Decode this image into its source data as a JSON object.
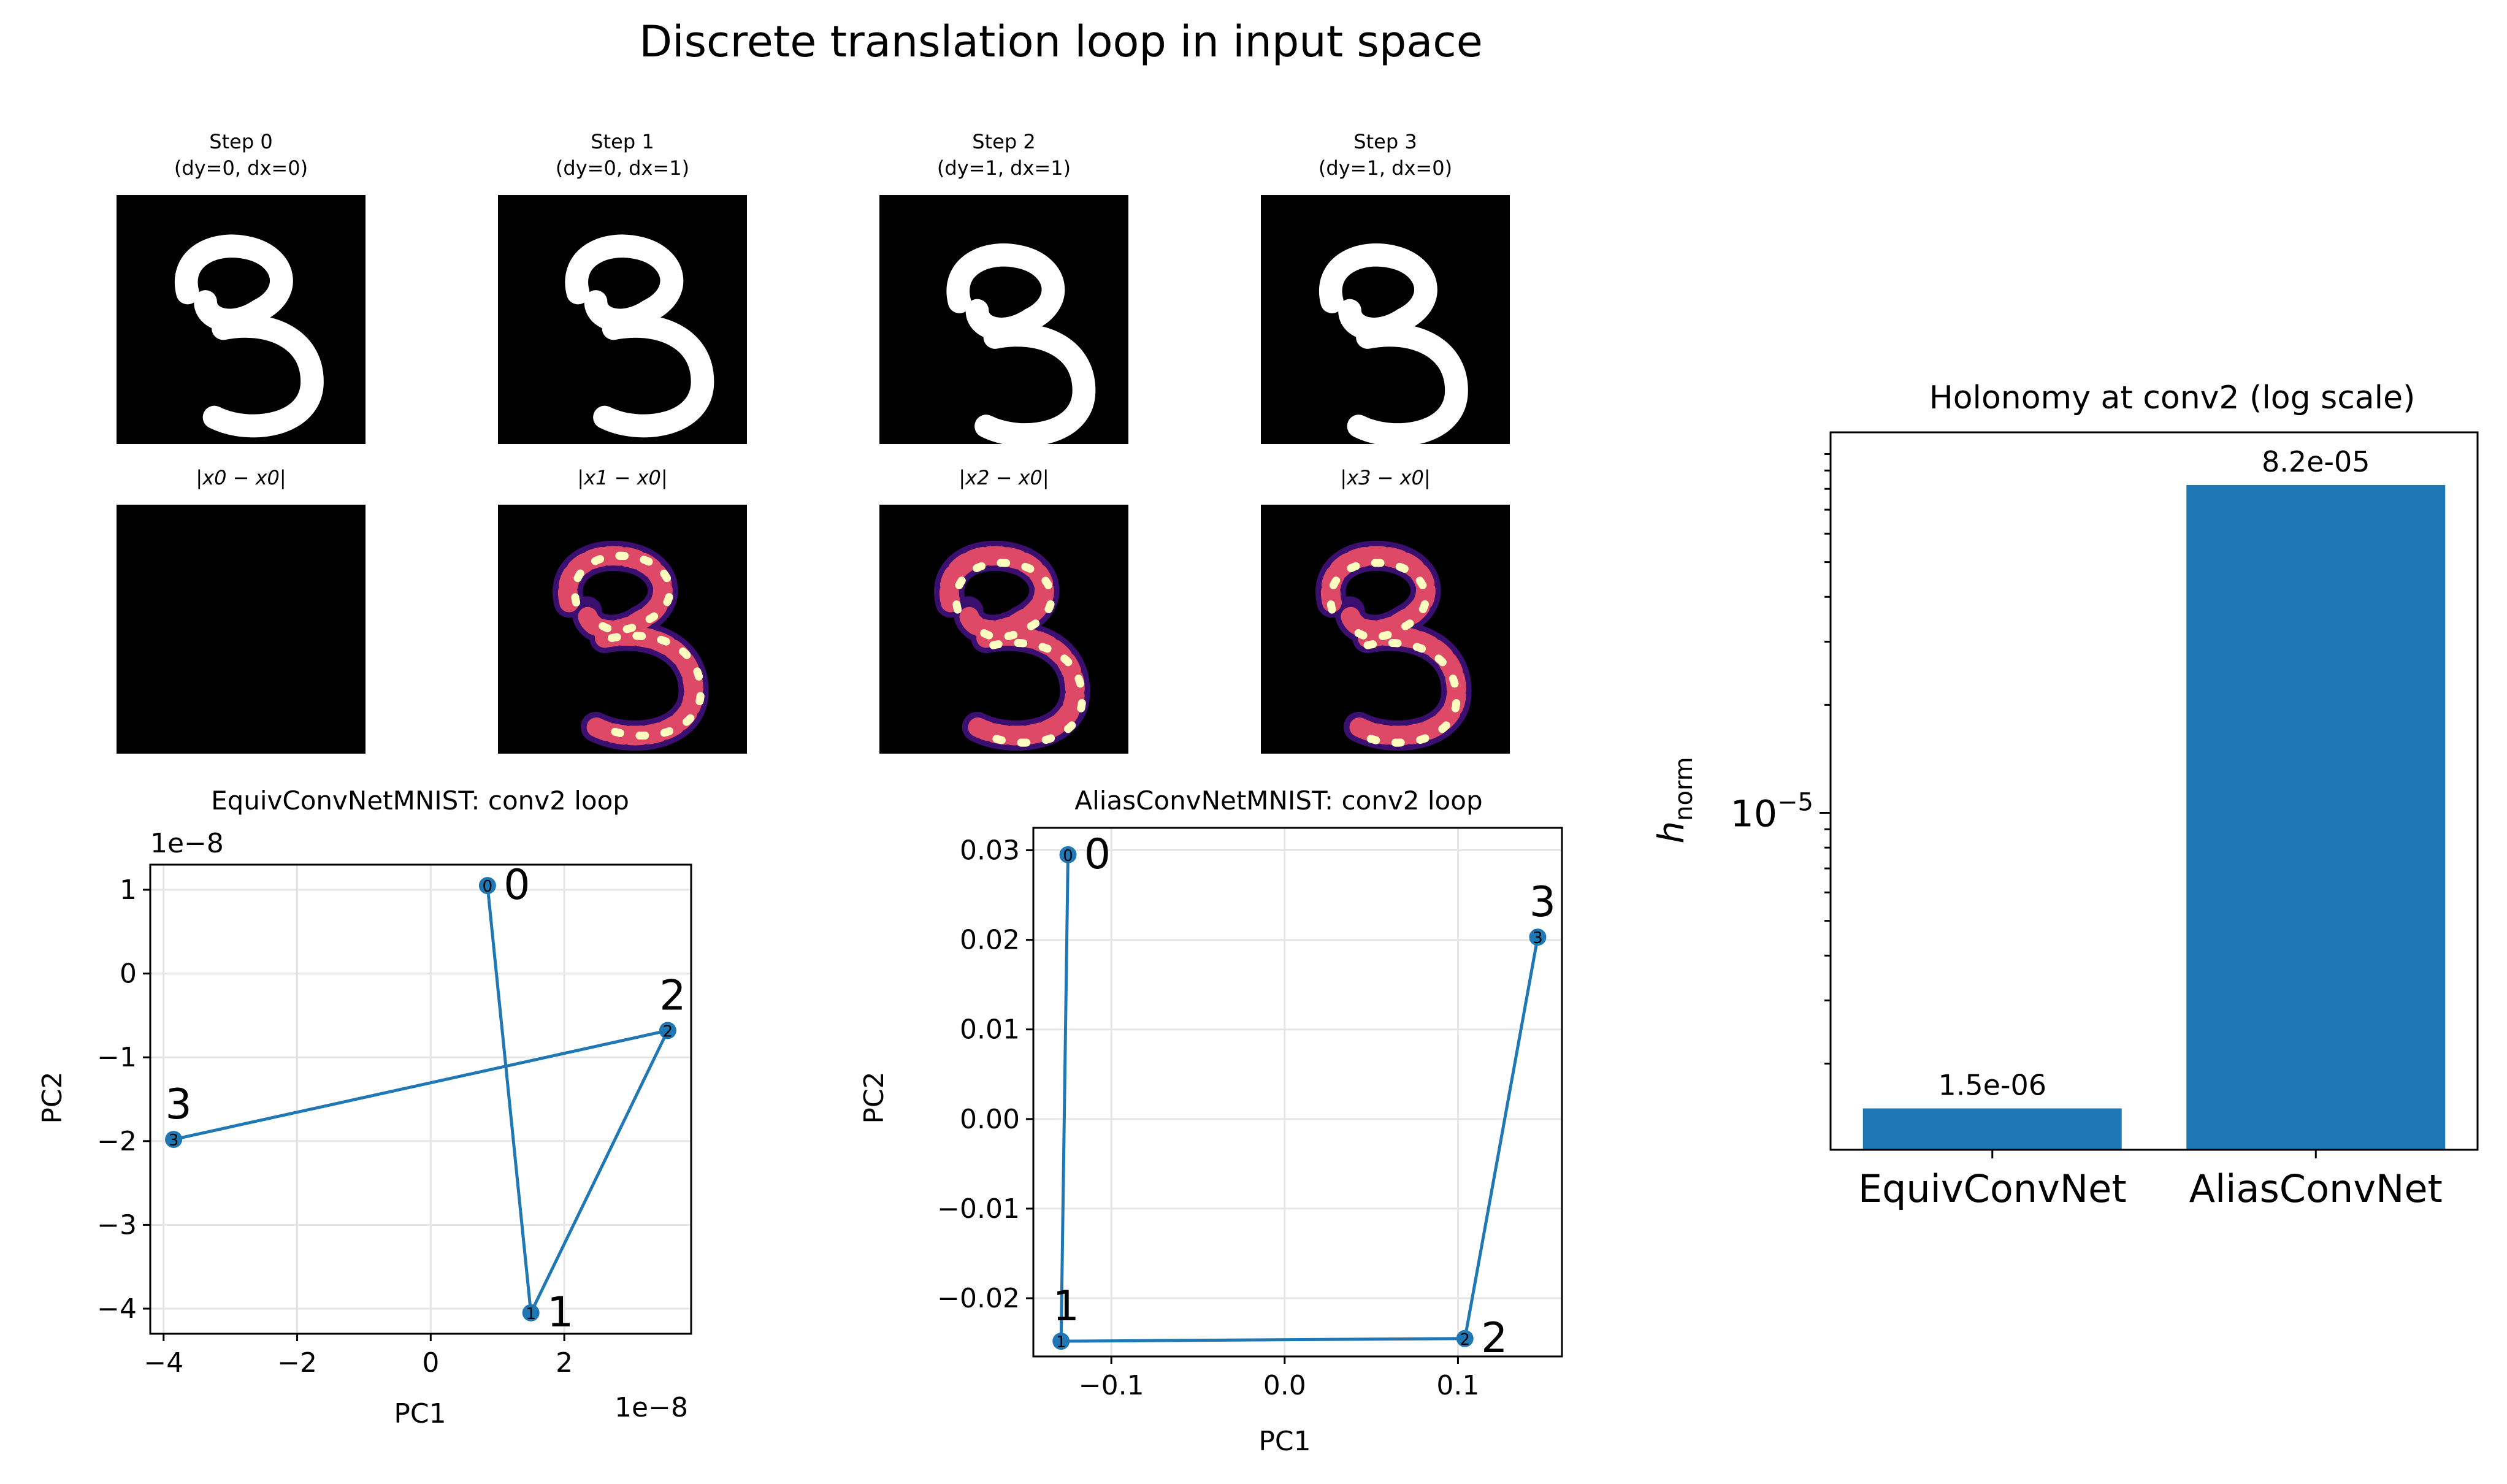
{
  "figure_title": "Discrete translation loop in input space",
  "steps": [
    {
      "label": "Step 0",
      "shift": "(dy=0, dx=0)",
      "diff_label": "|x0 − x0|"
    },
    {
      "label": "Step 1",
      "shift": "(dy=0, dx=1)",
      "diff_label": "|x1 − x0|"
    },
    {
      "label": "Step 2",
      "shift": "(dy=1, dx=1)",
      "diff_label": "|x2 − x0|"
    },
    {
      "label": "Step 3",
      "shift": "(dy=1, dx=0)",
      "diff_label": "|x3 − x0|"
    }
  ],
  "colors": {
    "series": "#1f77b4",
    "grid": "#e6e6e6",
    "image_bg": "#000000",
    "digit": "#ffffff",
    "diff_low": "#3b0f70",
    "diff_mid": "#de4968",
    "diff_high": "#fcfdbf"
  },
  "chart_data": [
    {
      "type": "line",
      "title": "EquivConvNetMNIST: conv2 loop",
      "xlabel": "PC1",
      "ylabel": "PC2",
      "x_offset_text": "1e−8",
      "y_offset_text": "1e−8",
      "xlim": [
        -4.2,
        3.9
      ],
      "ylim": [
        -4.3,
        1.3
      ],
      "xticks": [
        -4,
        -2,
        0,
        2
      ],
      "yticks": [
        1,
        0,
        -1,
        -2,
        -3,
        -4
      ],
      "grid": true,
      "points": [
        {
          "label": "0",
          "x": 0.85,
          "y": 1.05
        },
        {
          "label": "1",
          "x": 1.5,
          "y": -4.05
        },
        {
          "label": "2",
          "x": 3.55,
          "y": -0.68
        },
        {
          "label": "3",
          "x": -3.85,
          "y": -1.98
        }
      ],
      "label_positions": [
        "right",
        "right",
        "above",
        "above"
      ]
    },
    {
      "type": "line",
      "title": "AliasConvNetMNIST: conv2 loop",
      "xlabel": "PC1",
      "ylabel": "PC2",
      "xlim": [
        -0.145,
        0.16
      ],
      "ylim": [
        -0.0265,
        0.0325
      ],
      "xticks": [
        -0.1,
        0.0,
        0.1
      ],
      "yticks": [
        0.03,
        0.02,
        0.01,
        0.0,
        -0.01,
        -0.02
      ],
      "tick_decimals_x": 1,
      "tick_decimals_y": 2,
      "grid": true,
      "points": [
        {
          "label": "0",
          "x": -0.125,
          "y": 0.0295
        },
        {
          "label": "1",
          "x": -0.129,
          "y": -0.0248
        },
        {
          "label": "2",
          "x": 0.104,
          "y": -0.0245
        },
        {
          "label": "3",
          "x": 0.146,
          "y": 0.0203
        }
      ],
      "label_positions": [
        "right",
        "above",
        "right",
        "above"
      ]
    },
    {
      "type": "bar",
      "title": "Holonomy at conv2 (log scale)",
      "ylabel": "h_norm",
      "ytick_label": "10^-5",
      "log_scale": true,
      "ylim": [
        1.15e-06,
        0.000115
      ],
      "categories": [
        "EquivConvNet",
        "AliasConvNet"
      ],
      "values": [
        1.5e-06,
        8.2e-05
      ],
      "value_labels": [
        "1.5e-06",
        "8.2e-05"
      ]
    }
  ]
}
